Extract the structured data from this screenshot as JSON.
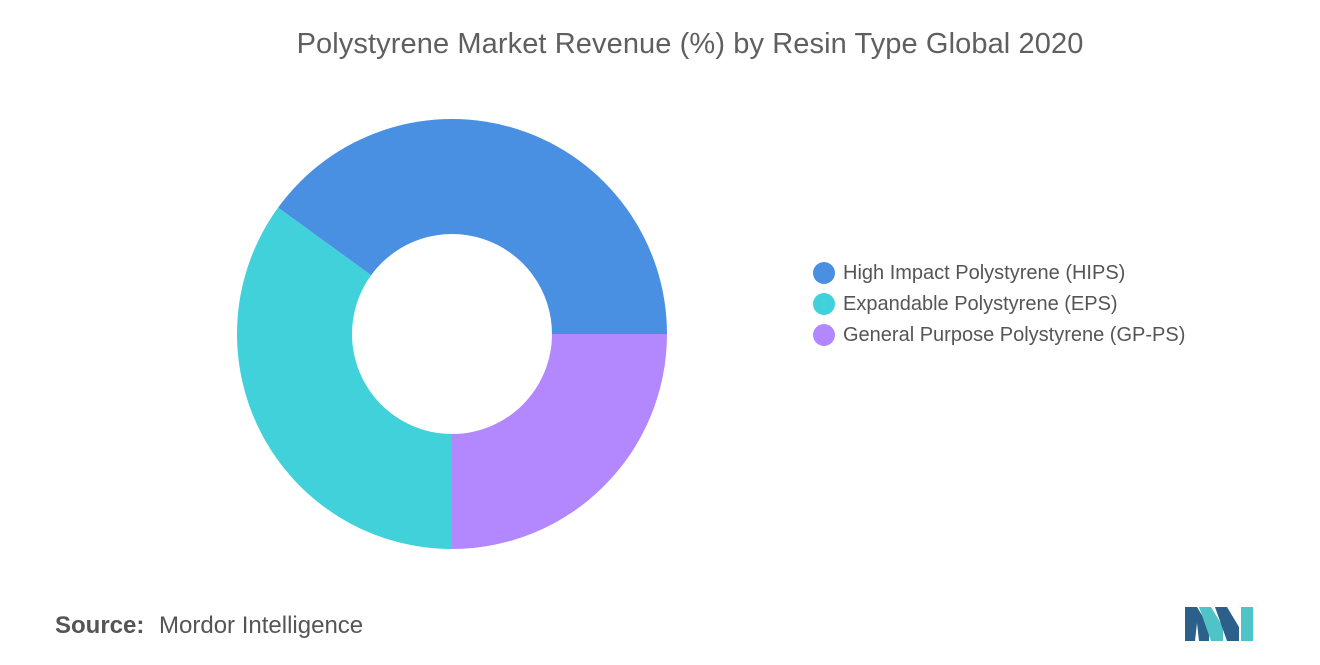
{
  "chart_data": {
    "type": "pie",
    "variant": "donut",
    "title": "Polystyrene Market Revenue (%) by Resin Type Global 2020",
    "series": [
      {
        "name": "High Impact Polystyrene (HIPS)",
        "value": 40,
        "color": "#4a90e2"
      },
      {
        "name": "Expandable Polystyrene (EPS)",
        "value": 35,
        "color": "#40d1da"
      },
      {
        "name": "General Purpose Polystyrene (GP-PS)",
        "value": 25,
        "color": "#b388ff"
      }
    ],
    "legend_position": "right"
  },
  "source": {
    "key": "Source:",
    "value": "Mordor Intelligence"
  },
  "logo": {
    "icon": "mordor-intelligence-logo-icon",
    "colors": [
      "#2c5f8a",
      "#4ec3c8"
    ]
  }
}
